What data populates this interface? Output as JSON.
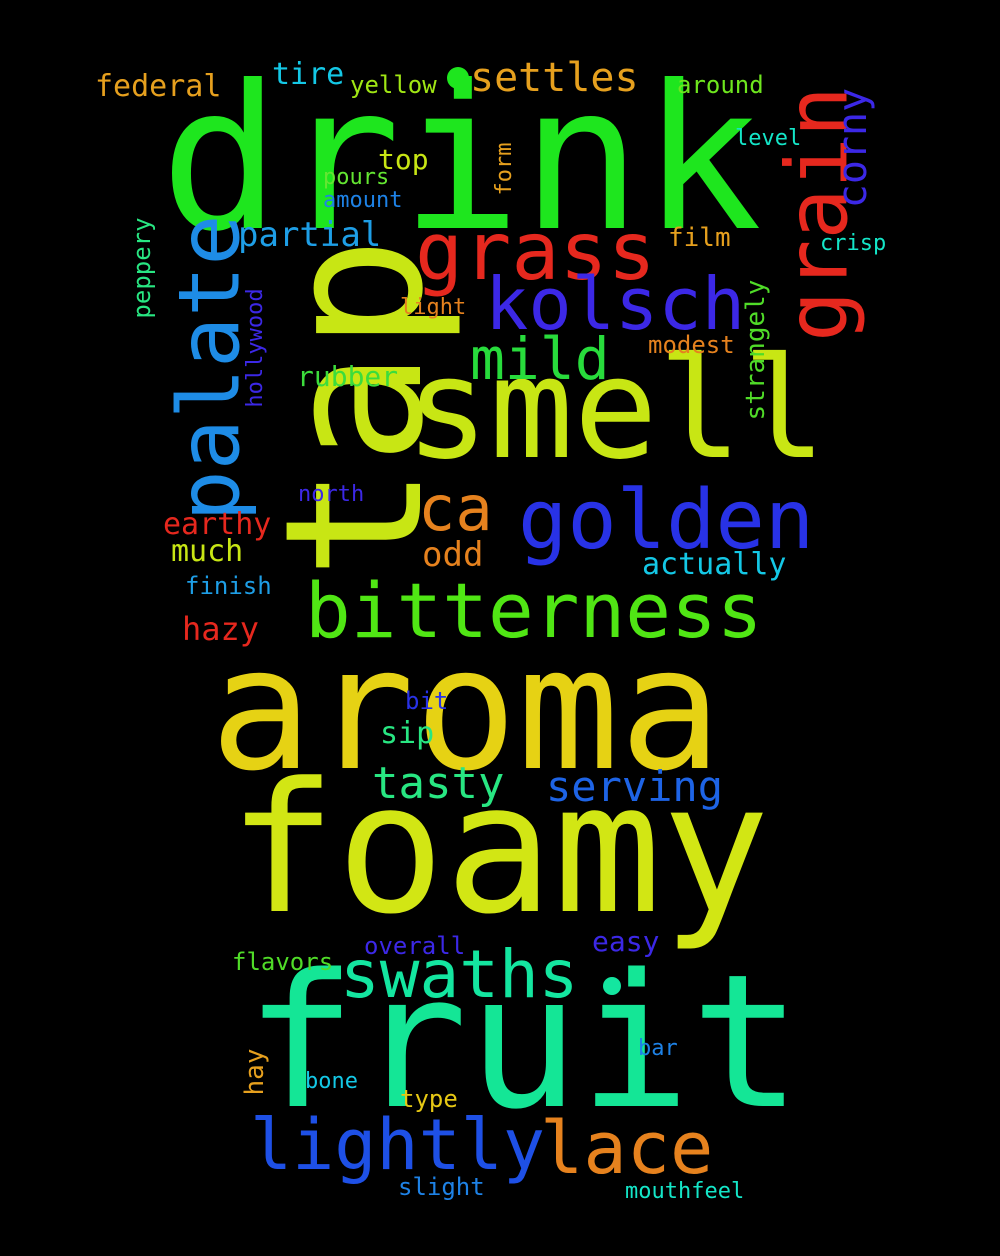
{
  "background": "#000000",
  "words": [
    {
      "text": "drink",
      "color": "#1ee61e"
    },
    {
      "text": "tap",
      "color": "#c8e614"
    },
    {
      "text": "smell",
      "color": "#c8e614"
    },
    {
      "text": "aroma",
      "color": "#e6d214"
    },
    {
      "text": "foamy",
      "color": "#d2e614"
    },
    {
      "text": "fruit",
      "color": "#14e696"
    },
    {
      "text": "grain",
      "color": "#e6281e"
    },
    {
      "text": "palate",
      "color": "#1e8ce6"
    },
    {
      "text": "grass",
      "color": "#e6281e"
    },
    {
      "text": "golden",
      "color": "#2832e6"
    },
    {
      "text": "bitterness",
      "color": "#50e614"
    },
    {
      "text": "kolsch",
      "color": "#3c28e6"
    },
    {
      "text": "swaths",
      "color": "#14e6a0"
    },
    {
      "text": "lace",
      "color": "#e6821e"
    },
    {
      "text": "lightly",
      "color": "#1e50e6"
    },
    {
      "text": "mild",
      "color": "#28dc3c"
    },
    {
      "text": "ca",
      "color": "#e6821e"
    },
    {
      "text": "settles",
      "color": "#e6a01e"
    },
    {
      "text": "tasty",
      "color": "#28e682"
    },
    {
      "text": "serving",
      "color": "#1e64e6"
    },
    {
      "text": "corny",
      "color": "#3c28e6"
    },
    {
      "text": "partial",
      "color": "#1e9ee6"
    },
    {
      "text": "odd",
      "color": "#e6821e"
    },
    {
      "text": "actually",
      "color": "#14c8e6"
    },
    {
      "text": "federal",
      "color": "#e6a01e"
    },
    {
      "text": "tire",
      "color": "#14c8e6"
    },
    {
      "text": "yellow",
      "color": "#a0e614"
    },
    {
      "text": "around",
      "color": "#6ee61e"
    },
    {
      "text": "top",
      "color": "#c8e614"
    },
    {
      "text": "pours",
      "color": "#64e632"
    },
    {
      "text": "amount",
      "color": "#1e82e6"
    },
    {
      "text": "form",
      "color": "#e6a01e"
    },
    {
      "text": "level",
      "color": "#14e6c8"
    },
    {
      "text": "film",
      "color": "#e6a01e"
    },
    {
      "text": "crisp",
      "color": "#14e6c8"
    },
    {
      "text": "peppery",
      "color": "#28e682"
    },
    {
      "text": "hollywood",
      "color": "#3c28e6"
    },
    {
      "text": "light",
      "color": "#e6821e"
    },
    {
      "text": "strangely",
      "color": "#50dc28"
    },
    {
      "text": "modest",
      "color": "#e6821e"
    },
    {
      "text": "rubber",
      "color": "#3cdc3c"
    },
    {
      "text": "north",
      "color": "#3c28e6"
    },
    {
      "text": "earthy",
      "color": "#e6281e"
    },
    {
      "text": "much",
      "color": "#c8e614"
    },
    {
      "text": "finish",
      "color": "#1e9ee6"
    },
    {
      "text": "hazy",
      "color": "#e6281e"
    },
    {
      "text": "bit",
      "color": "#2832e6"
    },
    {
      "text": "sip",
      "color": "#28e682"
    },
    {
      "text": "easy",
      "color": "#3c28e6"
    },
    {
      "text": "overall",
      "color": "#3c28e6"
    },
    {
      "text": "flavors",
      "color": "#50dc28"
    },
    {
      "text": "hay",
      "color": "#e6a01e"
    },
    {
      "text": "bone",
      "color": "#14c8e6"
    },
    {
      "text": "bar",
      "color": "#1e82e6"
    },
    {
      "text": "type",
      "color": "#e6c814"
    },
    {
      "text": "slight",
      "color": "#1e82e6"
    },
    {
      "text": "mouthfeel",
      "color": "#14e6c8"
    }
  ]
}
